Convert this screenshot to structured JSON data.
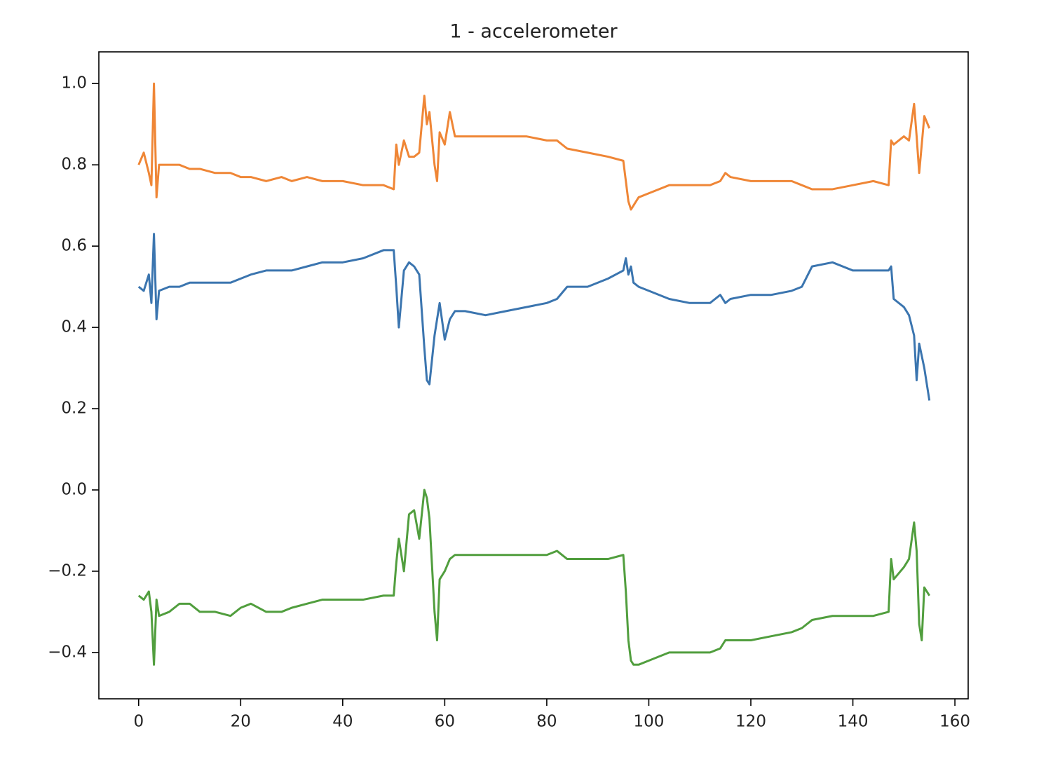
{
  "chart_data": {
    "type": "line",
    "title": "1 - accelerometer",
    "x": [
      0,
      1,
      2,
      2.5,
      3,
      3.5,
      4,
      6,
      8,
      10,
      12,
      15,
      18,
      20,
      22,
      25,
      28,
      30,
      33,
      36,
      40,
      44,
      48,
      50,
      50.5,
      51,
      52,
      53,
      54,
      55,
      56,
      56.5,
      57,
      58,
      58.5,
      59,
      60,
      61,
      62,
      64,
      68,
      72,
      76,
      80,
      82,
      84,
      88,
      92,
      95,
      95.5,
      96,
      96.5,
      97,
      98,
      100,
      104,
      108,
      112,
      114,
      115,
      116,
      120,
      124,
      128,
      130,
      132,
      136,
      140,
      144,
      147,
      147.5,
      148,
      150,
      151,
      152,
      152.5,
      153,
      153.5,
      154,
      155
    ],
    "series": [
      {
        "color": "#3b75af",
        "values": [
          0.5,
          0.49,
          0.53,
          0.46,
          0.63,
          0.42,
          0.49,
          0.5,
          0.5,
          0.51,
          0.51,
          0.51,
          0.51,
          0.52,
          0.53,
          0.54,
          0.54,
          0.54,
          0.55,
          0.56,
          0.56,
          0.57,
          0.59,
          0.59,
          0.5,
          0.4,
          0.54,
          0.56,
          0.55,
          0.53,
          0.35,
          0.27,
          0.26,
          0.38,
          0.42,
          0.46,
          0.37,
          0.42,
          0.44,
          0.44,
          0.43,
          0.44,
          0.45,
          0.46,
          0.47,
          0.5,
          0.5,
          0.52,
          0.54,
          0.57,
          0.53,
          0.55,
          0.51,
          0.5,
          0.49,
          0.47,
          0.46,
          0.46,
          0.48,
          0.46,
          0.47,
          0.48,
          0.48,
          0.49,
          0.5,
          0.55,
          0.56,
          0.54,
          0.54,
          0.54,
          0.55,
          0.47,
          0.45,
          0.43,
          0.38,
          0.27,
          0.36,
          0.33,
          0.3,
          0.22
        ]
      },
      {
        "color": "#ef8636",
        "values": [
          0.8,
          0.83,
          0.78,
          0.75,
          1.0,
          0.72,
          0.8,
          0.8,
          0.8,
          0.79,
          0.79,
          0.78,
          0.78,
          0.77,
          0.77,
          0.76,
          0.77,
          0.76,
          0.77,
          0.76,
          0.76,
          0.75,
          0.75,
          0.74,
          0.85,
          0.8,
          0.86,
          0.82,
          0.82,
          0.83,
          0.97,
          0.9,
          0.93,
          0.8,
          0.76,
          0.88,
          0.85,
          0.93,
          0.87,
          0.87,
          0.87,
          0.87,
          0.87,
          0.86,
          0.86,
          0.84,
          0.83,
          0.82,
          0.81,
          0.76,
          0.71,
          0.69,
          0.7,
          0.72,
          0.73,
          0.75,
          0.75,
          0.75,
          0.76,
          0.78,
          0.77,
          0.76,
          0.76,
          0.76,
          0.75,
          0.74,
          0.74,
          0.75,
          0.76,
          0.75,
          0.86,
          0.85,
          0.87,
          0.86,
          0.95,
          0.87,
          0.78,
          0.85,
          0.92,
          0.89
        ]
      },
      {
        "color": "#519e3e",
        "values": [
          -0.26,
          -0.27,
          -0.25,
          -0.3,
          -0.43,
          -0.27,
          -0.31,
          -0.3,
          -0.28,
          -0.28,
          -0.3,
          -0.3,
          -0.31,
          -0.29,
          -0.28,
          -0.3,
          -0.3,
          -0.29,
          -0.28,
          -0.27,
          -0.27,
          -0.27,
          -0.26,
          -0.26,
          -0.18,
          -0.12,
          -0.2,
          -0.06,
          -0.05,
          -0.12,
          0.0,
          -0.02,
          -0.07,
          -0.3,
          -0.37,
          -0.22,
          -0.2,
          -0.17,
          -0.16,
          -0.16,
          -0.16,
          -0.16,
          -0.16,
          -0.16,
          -0.15,
          -0.17,
          -0.17,
          -0.17,
          -0.16,
          -0.25,
          -0.37,
          -0.42,
          -0.43,
          -0.43,
          -0.42,
          -0.4,
          -0.4,
          -0.4,
          -0.39,
          -0.37,
          -0.37,
          -0.37,
          -0.36,
          -0.35,
          -0.34,
          -0.32,
          -0.31,
          -0.31,
          -0.31,
          -0.3,
          -0.17,
          -0.22,
          -0.19,
          -0.17,
          -0.08,
          -0.15,
          -0.33,
          -0.37,
          -0.24,
          -0.26
        ]
      }
    ],
    "xlim": [
      -7.8,
      162.6
    ],
    "ylim": [
      -0.514,
      1.078
    ],
    "xticks": [
      0,
      20,
      40,
      60,
      80,
      100,
      120,
      140,
      160
    ],
    "yticks": [
      {
        "value": -0.4,
        "label": "−0.4"
      },
      {
        "value": -0.2,
        "label": "−0.2"
      },
      {
        "value": 0,
        "label": "0.0"
      },
      {
        "value": 0.2,
        "label": "0.2"
      },
      {
        "value": 0.4,
        "label": "0.4"
      },
      {
        "value": 0.6,
        "label": "0.6"
      },
      {
        "value": 0.8,
        "label": "0.8"
      },
      {
        "value": 1.0,
        "label": "1.0"
      }
    ]
  }
}
